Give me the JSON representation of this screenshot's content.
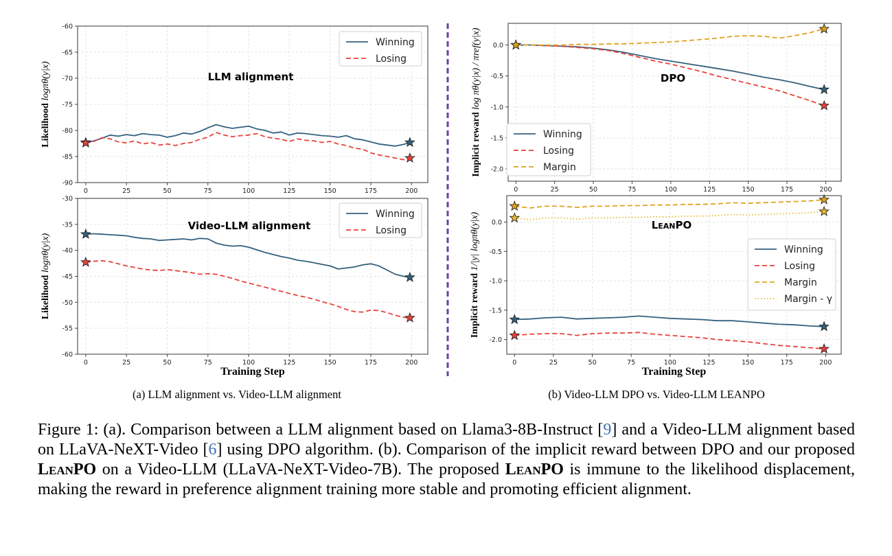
{
  "chart_data": [
    {
      "id": "llm",
      "type": "line",
      "annotation": "LLM alignment",
      "ylabel_main": "Likelihood ",
      "ylabel_math": "logπθ(y|x)",
      "xlabel": "",
      "xlim": [
        -5,
        210
      ],
      "ylim": [
        -90,
        -60
      ],
      "xticks": [
        0,
        25,
        50,
        75,
        100,
        125,
        150,
        175,
        200
      ],
      "yticks": [
        -90,
        -85,
        -80,
        -75,
        -70,
        -65,
        -60
      ],
      "legend": "top-right",
      "series": [
        {
          "name": "Winning",
          "color": "#34607f",
          "dash": "solid",
          "x": [
            0,
            5,
            10,
            15,
            20,
            25,
            30,
            35,
            40,
            45,
            50,
            55,
            60,
            65,
            70,
            75,
            80,
            85,
            90,
            95,
            100,
            105,
            110,
            115,
            120,
            125,
            130,
            135,
            140,
            145,
            150,
            155,
            160,
            165,
            170,
            175,
            180,
            185,
            190,
            195,
            199
          ],
          "y": [
            -82.3,
            -82.0,
            -81.5,
            -80.9,
            -81.1,
            -80.8,
            -81.0,
            -80.6,
            -80.8,
            -80.9,
            -81.3,
            -81.0,
            -80.5,
            -80.7,
            -80.2,
            -79.5,
            -78.9,
            -79.3,
            -79.6,
            -79.4,
            -79.2,
            -79.7,
            -80.0,
            -80.5,
            -80.3,
            -80.9,
            -80.5,
            -80.6,
            -80.8,
            -81.0,
            -81.1,
            -81.3,
            -81.0,
            -81.6,
            -81.8,
            -82.2,
            -82.6,
            -82.8,
            -83.0,
            -82.7,
            -82.3
          ]
        },
        {
          "name": "Losing",
          "color": "#e8423a",
          "dash": "dashed",
          "x": [
            0,
            5,
            10,
            15,
            20,
            25,
            30,
            35,
            40,
            45,
            50,
            55,
            60,
            65,
            70,
            75,
            80,
            85,
            90,
            95,
            100,
            105,
            110,
            115,
            120,
            125,
            130,
            135,
            140,
            145,
            150,
            155,
            160,
            165,
            170,
            175,
            180,
            185,
            190,
            195,
            199
          ],
          "y": [
            -82.4,
            -82.1,
            -81.4,
            -81.6,
            -82.2,
            -82.4,
            -82.0,
            -82.6,
            -82.3,
            -82.8,
            -82.6,
            -82.9,
            -82.5,
            -82.3,
            -81.7,
            -81.3,
            -80.4,
            -80.9,
            -81.2,
            -81.0,
            -80.9,
            -80.6,
            -81.2,
            -81.5,
            -81.7,
            -82.1,
            -81.6,
            -81.9,
            -82.0,
            -82.3,
            -82.1,
            -82.6,
            -82.9,
            -83.4,
            -83.6,
            -84.3,
            -84.7,
            -85.0,
            -85.3,
            -85.6,
            -85.3
          ]
        }
      ]
    },
    {
      "id": "video",
      "type": "line",
      "annotation": "Video-LLM alignment",
      "ylabel_main": "Likelihood ",
      "ylabel_math": "logπθ(y|x)",
      "xlabel": "Training Step",
      "xlim": [
        -5,
        210
      ],
      "ylim": [
        -60,
        -30
      ],
      "xticks": [
        0,
        25,
        50,
        75,
        100,
        125,
        150,
        175,
        200
      ],
      "yticks": [
        -60,
        -55,
        -50,
        -45,
        -40,
        -35,
        -30
      ],
      "legend": "top-right",
      "series": [
        {
          "name": "Winning",
          "color": "#34607f",
          "dash": "solid",
          "x": [
            0,
            5,
            10,
            15,
            20,
            25,
            30,
            35,
            40,
            45,
            50,
            55,
            60,
            65,
            70,
            75,
            80,
            85,
            90,
            95,
            100,
            105,
            110,
            115,
            120,
            125,
            130,
            135,
            140,
            145,
            150,
            155,
            160,
            165,
            170,
            175,
            180,
            185,
            190,
            195,
            199
          ],
          "y": [
            -36.9,
            -36.8,
            -36.9,
            -37.0,
            -37.1,
            -37.2,
            -37.5,
            -37.7,
            -37.8,
            -38.1,
            -38.0,
            -37.9,
            -37.8,
            -38.0,
            -37.7,
            -37.8,
            -38.6,
            -39.0,
            -39.2,
            -39.1,
            -39.4,
            -39.9,
            -40.4,
            -40.8,
            -41.2,
            -41.5,
            -41.9,
            -42.1,
            -42.4,
            -42.7,
            -43.0,
            -43.6,
            -43.4,
            -43.2,
            -42.8,
            -42.6,
            -43.0,
            -43.8,
            -44.6,
            -45.0,
            -45.2
          ]
        },
        {
          "name": "Losing",
          "color": "#e8423a",
          "dash": "dashed",
          "x": [
            0,
            5,
            10,
            15,
            20,
            25,
            30,
            35,
            40,
            45,
            50,
            55,
            60,
            65,
            70,
            75,
            80,
            85,
            90,
            95,
            100,
            105,
            110,
            115,
            120,
            125,
            130,
            135,
            140,
            145,
            150,
            155,
            160,
            165,
            170,
            175,
            180,
            185,
            190,
            195,
            199
          ],
          "y": [
            -42.3,
            -42.1,
            -42.0,
            -42.2,
            -42.6,
            -43.0,
            -43.3,
            -43.6,
            -43.8,
            -43.9,
            -43.7,
            -43.9,
            -44.1,
            -44.3,
            -44.6,
            -44.5,
            -44.6,
            -45.0,
            -45.4,
            -45.9,
            -46.3,
            -46.7,
            -47.1,
            -47.5,
            -47.9,
            -48.3,
            -48.7,
            -49.0,
            -49.4,
            -49.9,
            -50.3,
            -50.8,
            -51.4,
            -51.8,
            -51.9,
            -51.5,
            -51.6,
            -52.0,
            -52.5,
            -52.9,
            -53.0
          ]
        }
      ]
    },
    {
      "id": "dpo",
      "type": "line",
      "annotation": "DPO",
      "ylabel_main": "Implicit reward ",
      "ylabel_math": "log πθ(y|x) / πref(y|x)",
      "xlabel": "",
      "xlim": [
        -5,
        210
      ],
      "ylim": [
        -2.2,
        0.35
      ],
      "xticks": [
        0,
        25,
        50,
        75,
        100,
        125,
        150,
        175,
        200
      ],
      "yticks": [
        -2.0,
        -1.5,
        -1.0,
        -0.5,
        0.0
      ],
      "legend": "bottom-left",
      "series": [
        {
          "name": "Winning",
          "color": "#34607f",
          "dash": "solid",
          "x": [
            0,
            10,
            20,
            30,
            40,
            50,
            60,
            70,
            80,
            90,
            100,
            110,
            120,
            130,
            140,
            150,
            160,
            170,
            180,
            190,
            199
          ],
          "y": [
            0.0,
            0.0,
            -0.01,
            -0.02,
            -0.03,
            -0.05,
            -0.08,
            -0.12,
            -0.17,
            -0.22,
            -0.26,
            -0.3,
            -0.34,
            -0.38,
            -0.42,
            -0.47,
            -0.52,
            -0.56,
            -0.61,
            -0.67,
            -0.72
          ]
        },
        {
          "name": "Losing",
          "color": "#e8423a",
          "dash": "dashed",
          "x": [
            0,
            10,
            20,
            30,
            40,
            50,
            60,
            70,
            80,
            90,
            100,
            110,
            120,
            130,
            140,
            150,
            160,
            170,
            180,
            190,
            199
          ],
          "y": [
            0.0,
            0.0,
            -0.01,
            -0.02,
            -0.04,
            -0.06,
            -0.09,
            -0.14,
            -0.2,
            -0.26,
            -0.31,
            -0.37,
            -0.43,
            -0.5,
            -0.56,
            -0.62,
            -0.68,
            -0.74,
            -0.82,
            -0.9,
            -0.98
          ]
        },
        {
          "name": "Margin",
          "color": "#e0a21b",
          "dash": "dashed",
          "x": [
            0,
            10,
            20,
            30,
            40,
            50,
            60,
            70,
            80,
            90,
            100,
            110,
            120,
            130,
            140,
            150,
            160,
            170,
            180,
            190,
            199
          ],
          "y": [
            0.0,
            0.0,
            0.0,
            0.0,
            0.01,
            0.01,
            0.02,
            0.02,
            0.03,
            0.04,
            0.05,
            0.07,
            0.09,
            0.11,
            0.14,
            0.15,
            0.14,
            0.11,
            0.15,
            0.2,
            0.26
          ]
        }
      ]
    },
    {
      "id": "leanpo",
      "type": "line",
      "annotation": "LEANPO",
      "ylabel_main": "Implicit reward ",
      "ylabel_math": "1/|y| logπθ(y|x)",
      "xlabel": "Training Step",
      "xlim": [
        -5,
        210
      ],
      "ylim": [
        -2.25,
        0.45
      ],
      "xticks": [
        0,
        25,
        50,
        75,
        100,
        125,
        150,
        175,
        200
      ],
      "yticks": [
        -2.0,
        -1.5,
        -1.0,
        -0.5,
        0.0
      ],
      "legend": "center-right",
      "series": [
        {
          "name": "Winning",
          "color": "#34607f",
          "dash": "solid",
          "x": [
            0,
            10,
            20,
            30,
            40,
            50,
            60,
            70,
            80,
            90,
            100,
            110,
            120,
            130,
            140,
            150,
            160,
            170,
            180,
            190,
            199
          ],
          "y": [
            -1.66,
            -1.65,
            -1.63,
            -1.62,
            -1.65,
            -1.64,
            -1.63,
            -1.62,
            -1.6,
            -1.62,
            -1.64,
            -1.65,
            -1.66,
            -1.68,
            -1.68,
            -1.7,
            -1.72,
            -1.74,
            -1.75,
            -1.77,
            -1.78
          ]
        },
        {
          "name": "Losing",
          "color": "#e8423a",
          "dash": "dashed",
          "x": [
            0,
            10,
            20,
            30,
            40,
            50,
            60,
            70,
            80,
            90,
            100,
            110,
            120,
            130,
            140,
            150,
            160,
            170,
            180,
            190,
            199
          ],
          "y": [
            -1.93,
            -1.91,
            -1.9,
            -1.9,
            -1.93,
            -1.9,
            -1.89,
            -1.89,
            -1.88,
            -1.91,
            -1.93,
            -1.95,
            -1.97,
            -2.0,
            -2.02,
            -2.04,
            -2.07,
            -2.1,
            -2.12,
            -2.14,
            -2.16
          ]
        },
        {
          "name": "Margin",
          "color": "#e0a21b",
          "dash": "dashed",
          "x": [
            0,
            10,
            20,
            30,
            40,
            50,
            60,
            70,
            80,
            90,
            100,
            110,
            120,
            130,
            140,
            150,
            160,
            170,
            180,
            190,
            199
          ],
          "y": [
            0.27,
            0.24,
            0.27,
            0.27,
            0.25,
            0.27,
            0.27,
            0.28,
            0.28,
            0.29,
            0.29,
            0.3,
            0.3,
            0.31,
            0.33,
            0.32,
            0.33,
            0.34,
            0.35,
            0.36,
            0.38
          ]
        },
        {
          "name": "Margin - γ",
          "color": "#e8b830",
          "dash": "dotted",
          "x": [
            0,
            10,
            20,
            30,
            40,
            50,
            60,
            70,
            80,
            90,
            100,
            110,
            120,
            130,
            140,
            150,
            160,
            170,
            180,
            190,
            199
          ],
          "y": [
            0.07,
            0.04,
            0.07,
            0.07,
            0.05,
            0.07,
            0.07,
            0.08,
            0.08,
            0.09,
            0.09,
            0.1,
            0.1,
            0.11,
            0.13,
            0.12,
            0.13,
            0.14,
            0.15,
            0.16,
            0.18
          ]
        }
      ]
    }
  ],
  "subcaption_a": "(a) LLM alignment vs. Video-LLM alignment",
  "subcaption_b": "(b) Video-LLM DPO vs. Video-LLM LEANPO",
  "divider_color": "#6b3fa0",
  "caption": {
    "p1": "Figure 1: (a).  Comparison between a LLM alignment based on Llama3-8B-Instruct [",
    "r1": "9",
    "p2": "] and a Video-LLM alignment based on LLaVA-NeXT-Video [",
    "r2": "6",
    "p3": "] using DPO algorithm. (b). Comparison of the implicit reward between DPO and our proposed ",
    "b1": "LeanPO",
    "p4": " on a Video-LLM (LLaVA-NeXT-Video-7B). The proposed ",
    "b2": "LeanPO",
    "p5": " is immune to the likelihood displacement, making the reward in preference alignment training more stable and promoting efficient alignment."
  }
}
